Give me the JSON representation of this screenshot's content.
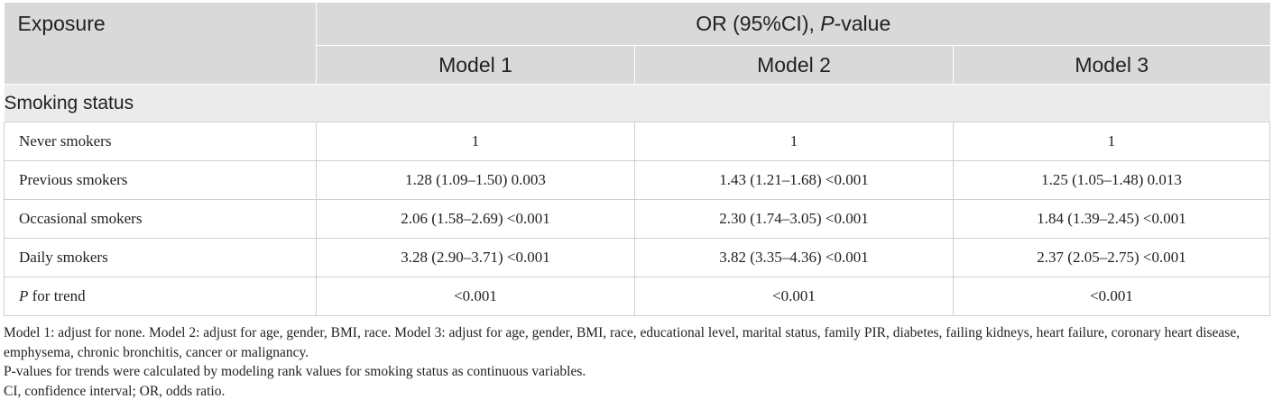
{
  "table": {
    "header": {
      "exposure": "Exposure",
      "group_prefix": "OR (95%CI), ",
      "group_p": "P",
      "group_suffix": "-value",
      "models": [
        "Model 1",
        "Model 2",
        "Model 3"
      ]
    },
    "section": "Smoking status",
    "rows": [
      {
        "label": "Never smokers",
        "values": [
          "1",
          "1",
          "1"
        ]
      },
      {
        "label": "Previous smokers",
        "values": [
          "1.28 (1.09–1.50) 0.003",
          "1.43 (1.21–1.68) <0.001",
          "1.25 (1.05–1.48) 0.013"
        ]
      },
      {
        "label": "Occasional smokers",
        "values": [
          "2.06 (1.58–2.69) <0.001",
          "2.30 (1.74–3.05) <0.001",
          "1.84 (1.39–2.45) <0.001"
        ]
      },
      {
        "label": "Daily smokers",
        "values": [
          "3.28 (2.90–3.71) <0.001",
          "3.82 (3.35–4.36) <0.001",
          "2.37 (2.05–2.75) <0.001"
        ]
      }
    ],
    "trend_row": {
      "label_p": "P",
      "label_rest": " for trend",
      "values": [
        "<0.001",
        "<0.001",
        "<0.001"
      ]
    }
  },
  "notes": [
    "Model 1: adjust for none. Model 2: adjust for age, gender, BMI, race. Model 3: adjust for age, gender, BMI, race, educational level, marital status, family PIR, diabetes, failing kidneys, heart failure, coronary heart disease, emphysema, chronic bronchitis, cancer or malignancy.",
    "P-values for trends were calculated by modeling rank values for smoking status as continuous variables.",
    "CI, confidence interval; OR, odds ratio."
  ]
}
